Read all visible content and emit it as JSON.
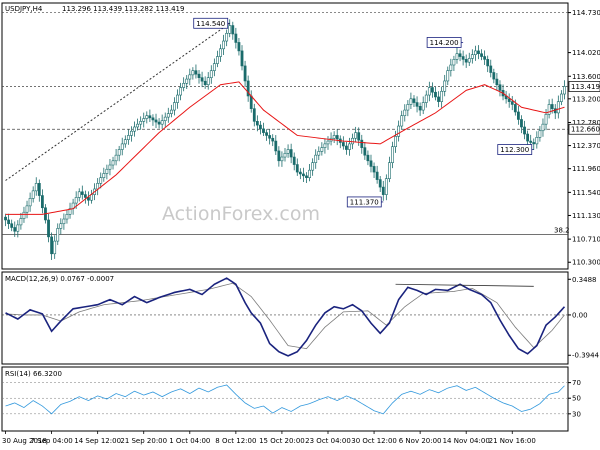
{
  "chart_data": {
    "type": "candlestick",
    "symbol_label": "USDJPY,H4",
    "ohlc_readout": "113.296 113.439 113.282 113.419",
    "watermark": "ActionForex.com",
    "colors": {
      "candle": "#1a6b6b",
      "ma": "#e81515",
      "macd": "#1a237e",
      "signal": "#7c7c7c",
      "rsi": "#3399dd",
      "trendline": "#333333"
    },
    "price_axis": {
      "ylim": [
        110.18,
        114.9
      ],
      "ticks": [
        "114.730",
        "114.020",
        "113.600",
        "113.200",
        "112.780",
        "112.370",
        "111.960",
        "111.540",
        "111.130",
        "110.710",
        "110.300"
      ],
      "tick_values": [
        114.73,
        114.02,
        113.6,
        113.2,
        112.78,
        112.37,
        111.96,
        111.54,
        111.13,
        110.71,
        110.3
      ],
      "current_price": "113.419",
      "current_value": 113.419,
      "level_label": "112.660",
      "level_value": 112.66,
      "fib_label": "38.2",
      "fib_value": 110.79
    },
    "annotations": [
      {
        "text": "114.540",
        "bar": 73,
        "value": 114.54
      },
      {
        "text": "114.200",
        "bar": 149,
        "value": 114.2
      },
      {
        "text": "112.300",
        "bar": 172,
        "value": 112.3
      },
      {
        "text": "111.370",
        "bar": 123,
        "value": 111.37
      }
    ],
    "x_axis": {
      "labels": [
        "30 Aug 2018",
        "7 Sep 04:00",
        "14 Sep 12:00",
        "21 Sep 20:00",
        "1 Oct 04:00",
        "8 Oct 12:00",
        "15 Oct 20:00",
        "23 Oct 04:00",
        "30 Oct 12:00",
        "6 Nov 20:00",
        "14 Nov 04:00",
        "21 Nov 16:00"
      ],
      "label_bars": [
        0,
        15,
        30,
        45,
        60,
        75,
        90,
        105,
        120,
        135,
        150,
        165
      ]
    },
    "bar_count": 183,
    "price_pivots": [
      [
        0,
        111.05
      ],
      [
        3,
        110.85
      ],
      [
        7,
        111.3
      ],
      [
        10,
        111.7
      ],
      [
        13,
        111.05
      ],
      [
        15,
        110.45
      ],
      [
        17,
        110.9
      ],
      [
        20,
        111.15
      ],
      [
        24,
        111.55
      ],
      [
        27,
        111.4
      ],
      [
        31,
        111.8
      ],
      [
        35,
        112.1
      ],
      [
        38,
        112.4
      ],
      [
        42,
        112.7
      ],
      [
        46,
        112.9
      ],
      [
        50,
        112.75
      ],
      [
        54,
        113.0
      ],
      [
        57,
        113.4
      ],
      [
        61,
        113.7
      ],
      [
        65,
        113.45
      ],
      [
        69,
        113.95
      ],
      [
        73,
        114.5
      ],
      [
        76,
        114.05
      ],
      [
        79,
        113.25
      ],
      [
        81,
        112.8
      ],
      [
        84,
        112.6
      ],
      [
        87,
        112.45
      ],
      [
        89,
        112.1
      ],
      [
        92,
        112.3
      ],
      [
        95,
        111.9
      ],
      [
        98,
        111.8
      ],
      [
        101,
        112.2
      ],
      [
        104,
        112.4
      ],
      [
        107,
        112.55
      ],
      [
        111,
        112.3
      ],
      [
        114,
        112.6
      ],
      [
        117,
        112.2
      ],
      [
        120,
        111.9
      ],
      [
        123,
        111.5
      ],
      [
        126,
        112.35
      ],
      [
        129,
        112.9
      ],
      [
        132,
        113.2
      ],
      [
        135,
        113.0
      ],
      [
        138,
        113.4
      ],
      [
        141,
        113.15
      ],
      [
        144,
        113.7
      ],
      [
        147,
        114.0
      ],
      [
        150,
        113.85
      ],
      [
        153,
        114.05
      ],
      [
        156,
        113.9
      ],
      [
        159,
        113.55
      ],
      [
        162,
        113.25
      ],
      [
        165,
        113.1
      ],
      [
        168,
        112.7
      ],
      [
        170,
        112.45
      ],
      [
        172,
        112.4
      ],
      [
        175,
        112.75
      ],
      [
        177,
        113.1
      ],
      [
        179,
        112.95
      ],
      [
        180,
        113.15
      ],
      [
        182,
        113.42
      ]
    ],
    "ma_pivots": [
      [
        0,
        111.15
      ],
      [
        12,
        111.15
      ],
      [
        22,
        111.25
      ],
      [
        36,
        111.85
      ],
      [
        50,
        112.6
      ],
      [
        60,
        113.05
      ],
      [
        70,
        113.45
      ],
      [
        76,
        113.5
      ],
      [
        84,
        113.0
      ],
      [
        95,
        112.55
      ],
      [
        110,
        112.45
      ],
      [
        122,
        112.4
      ],
      [
        130,
        112.65
      ],
      [
        140,
        112.95
      ],
      [
        150,
        113.35
      ],
      [
        156,
        113.45
      ],
      [
        162,
        113.3
      ],
      [
        168,
        113.05
      ],
      [
        176,
        112.95
      ],
      [
        182,
        113.05
      ]
    ],
    "macd": {
      "label": "MACD(12,26,9) 0.0767 -0.0007",
      "ylim": [
        -0.48,
        0.42
      ],
      "ticks": [
        "0.3488",
        "0.00",
        "-0.3944"
      ],
      "tick_values": [
        0.3488,
        0.0,
        -0.3944
      ],
      "macd_pivots": [
        [
          0,
          0.02
        ],
        [
          4,
          -0.04
        ],
        [
          8,
          0.05
        ],
        [
          12,
          0.01
        ],
        [
          15,
          -0.16
        ],
        [
          18,
          -0.06
        ],
        [
          22,
          0.06
        ],
        [
          26,
          0.08
        ],
        [
          30,
          0.1
        ],
        [
          34,
          0.15
        ],
        [
          38,
          0.1
        ],
        [
          42,
          0.18
        ],
        [
          46,
          0.12
        ],
        [
          50,
          0.17
        ],
        [
          55,
          0.22
        ],
        [
          60,
          0.25
        ],
        [
          64,
          0.2
        ],
        [
          68,
          0.3
        ],
        [
          72,
          0.36
        ],
        [
          75,
          0.3
        ],
        [
          78,
          0.12
        ],
        [
          80,
          0.02
        ],
        [
          83,
          -0.08
        ],
        [
          86,
          -0.28
        ],
        [
          89,
          -0.36
        ],
        [
          92,
          -0.4
        ],
        [
          95,
          -0.36
        ],
        [
          98,
          -0.25
        ],
        [
          101,
          -0.1
        ],
        [
          104,
          0.02
        ],
        [
          107,
          0.08
        ],
        [
          110,
          0.06
        ],
        [
          113,
          0.1
        ],
        [
          116,
          0.04
        ],
        [
          119,
          -0.08
        ],
        [
          122,
          -0.18
        ],
        [
          125,
          -0.08
        ],
        [
          128,
          0.15
        ],
        [
          131,
          0.27
        ],
        [
          134,
          0.24
        ],
        [
          137,
          0.2
        ],
        [
          140,
          0.25
        ],
        [
          144,
          0.24
        ],
        [
          148,
          0.3
        ],
        [
          151,
          0.25
        ],
        [
          155,
          0.2
        ],
        [
          158,
          0.12
        ],
        [
          161,
          -0.05
        ],
        [
          164,
          -0.2
        ],
        [
          167,
          -0.33
        ],
        [
          170,
          -0.38
        ],
        [
          173,
          -0.3
        ],
        [
          176,
          -0.1
        ],
        [
          179,
          -0.02
        ],
        [
          182,
          0.08
        ]
      ],
      "signal_pivots": [
        [
          0,
          0.01
        ],
        [
          6,
          0.0
        ],
        [
          12,
          0.0
        ],
        [
          18,
          -0.06
        ],
        [
          24,
          0.03
        ],
        [
          32,
          0.1
        ],
        [
          44,
          0.14
        ],
        [
          56,
          0.2
        ],
        [
          66,
          0.25
        ],
        [
          74,
          0.31
        ],
        [
          80,
          0.18
        ],
        [
          86,
          -0.05
        ],
        [
          92,
          -0.3
        ],
        [
          98,
          -0.33
        ],
        [
          104,
          -0.12
        ],
        [
          110,
          0.03
        ],
        [
          118,
          0.04
        ],
        [
          124,
          -0.1
        ],
        [
          130,
          0.08
        ],
        [
          136,
          0.21
        ],
        [
          146,
          0.23
        ],
        [
          152,
          0.26
        ],
        [
          160,
          0.12
        ],
        [
          166,
          -0.12
        ],
        [
          172,
          -0.32
        ],
        [
          178,
          -0.15
        ],
        [
          182,
          0.0
        ]
      ],
      "trendline": [
        [
          127,
          0.3
        ],
        [
          172,
          0.28
        ]
      ]
    },
    "rsi": {
      "label": "RSI(14) 66.3200",
      "ylim": [
        8,
        90
      ],
      "ticks": [
        "70",
        "50",
        "30"
      ],
      "tick_values": [
        70,
        50,
        30
      ],
      "pivots": [
        [
          0,
          40
        ],
        [
          3,
          44
        ],
        [
          6,
          38
        ],
        [
          9,
          47
        ],
        [
          12,
          40
        ],
        [
          15,
          30
        ],
        [
          18,
          42
        ],
        [
          21,
          46
        ],
        [
          24,
          52
        ],
        [
          27,
          47
        ],
        [
          30,
          53
        ],
        [
          33,
          49
        ],
        [
          36,
          56
        ],
        [
          39,
          52
        ],
        [
          42,
          59
        ],
        [
          45,
          54
        ],
        [
          48,
          58
        ],
        [
          51,
          52
        ],
        [
          54,
          58
        ],
        [
          57,
          62
        ],
        [
          60,
          56
        ],
        [
          63,
          63
        ],
        [
          66,
          58
        ],
        [
          69,
          64
        ],
        [
          72,
          67
        ],
        [
          75,
          55
        ],
        [
          78,
          44
        ],
        [
          81,
          37
        ],
        [
          84,
          40
        ],
        [
          87,
          31
        ],
        [
          90,
          38
        ],
        [
          93,
          33
        ],
        [
          96,
          40
        ],
        [
          99,
          43
        ],
        [
          102,
          48
        ],
        [
          105,
          52
        ],
        [
          108,
          47
        ],
        [
          111,
          53
        ],
        [
          114,
          48
        ],
        [
          117,
          41
        ],
        [
          120,
          34
        ],
        [
          123,
          30
        ],
        [
          126,
          44
        ],
        [
          129,
          55
        ],
        [
          132,
          59
        ],
        [
          135,
          55
        ],
        [
          138,
          61
        ],
        [
          141,
          57
        ],
        [
          144,
          63
        ],
        [
          147,
          66
        ],
        [
          150,
          60
        ],
        [
          153,
          64
        ],
        [
          156,
          57
        ],
        [
          159,
          50
        ],
        [
          162,
          44
        ],
        [
          165,
          40
        ],
        [
          168,
          33
        ],
        [
          171,
          36
        ],
        [
          174,
          43
        ],
        [
          177,
          55
        ],
        [
          180,
          58
        ],
        [
          182,
          66
        ]
      ]
    },
    "trendline": {
      "from": [
        0,
        111.75
      ],
      "to": [
        73,
        114.54
      ]
    }
  }
}
